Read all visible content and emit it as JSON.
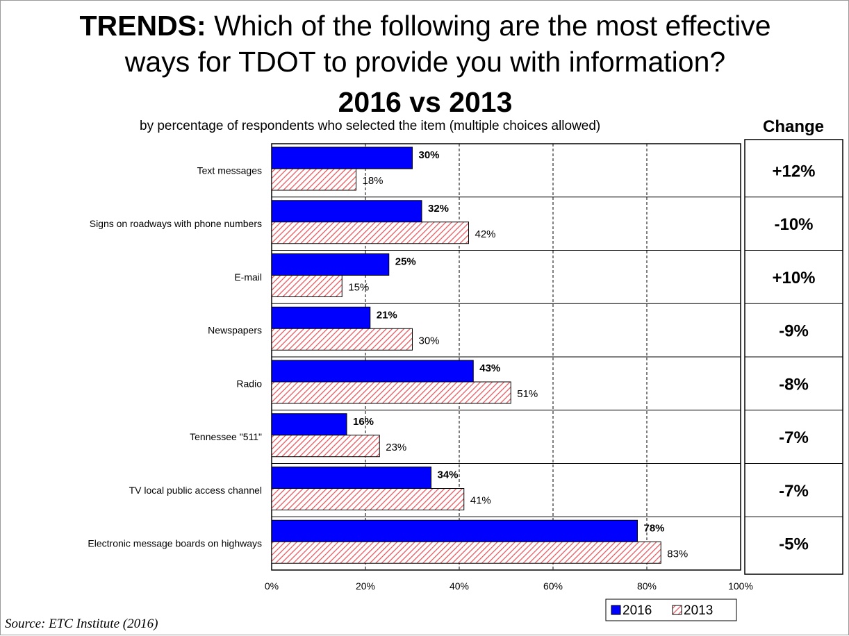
{
  "header": {
    "title_bold": "TRENDS:",
    "title_rest": " Which of the following are the most effective",
    "title_line2": "ways for TDOT to provide you with information?",
    "title_line3": "2016 vs 2013",
    "subtitle": "by percentage of respondents who selected the item (multiple choices allowed)",
    "change_header": "Change"
  },
  "source": "Source:  ETC Institute (2016)",
  "colors": {
    "series_2016": "#0000ff",
    "series_2013_hatch": "#e8545a",
    "gridline": "#000000"
  },
  "chart_data": {
    "type": "bar",
    "orientation": "horizontal",
    "title": "TRENDS: Which of the following are the most effective ways for TDOT to provide you with information? 2016 vs 2013",
    "subtitle": "by percentage of respondents who selected the item (multiple choices allowed)",
    "categories": [
      "Text messages",
      "Signs on roadways with phone numbers",
      "E-mail",
      "Newspapers",
      "Radio",
      "Tennessee \"511\"",
      "TV local public access channel",
      "Electronic message boards on highways"
    ],
    "series": [
      {
        "name": "2016",
        "values": [
          30,
          32,
          25,
          21,
          43,
          16,
          34,
          78
        ],
        "labels": [
          "30%",
          "32%",
          "25%",
          "21%",
          "43%",
          "16%",
          "34%",
          "78%"
        ]
      },
      {
        "name": "2013",
        "values": [
          18,
          42,
          15,
          30,
          51,
          23,
          41,
          83
        ],
        "labels": [
          "18%",
          "42%",
          "15%",
          "30%",
          "51%",
          "23%",
          "41%",
          "83%"
        ]
      }
    ],
    "change": [
      "+12%",
      "-10%",
      "+10%",
      "-9%",
      "-8%",
      "-7%",
      "-7%",
      "-5%"
    ],
    "xlim": [
      0,
      100
    ],
    "xticks": [
      0,
      20,
      40,
      60,
      80,
      100
    ],
    "xtick_labels": [
      "0%",
      "20%",
      "40%",
      "60%",
      "80%",
      "100%"
    ],
    "grid": "vertical dashed",
    "legend_position": "bottom-right"
  }
}
